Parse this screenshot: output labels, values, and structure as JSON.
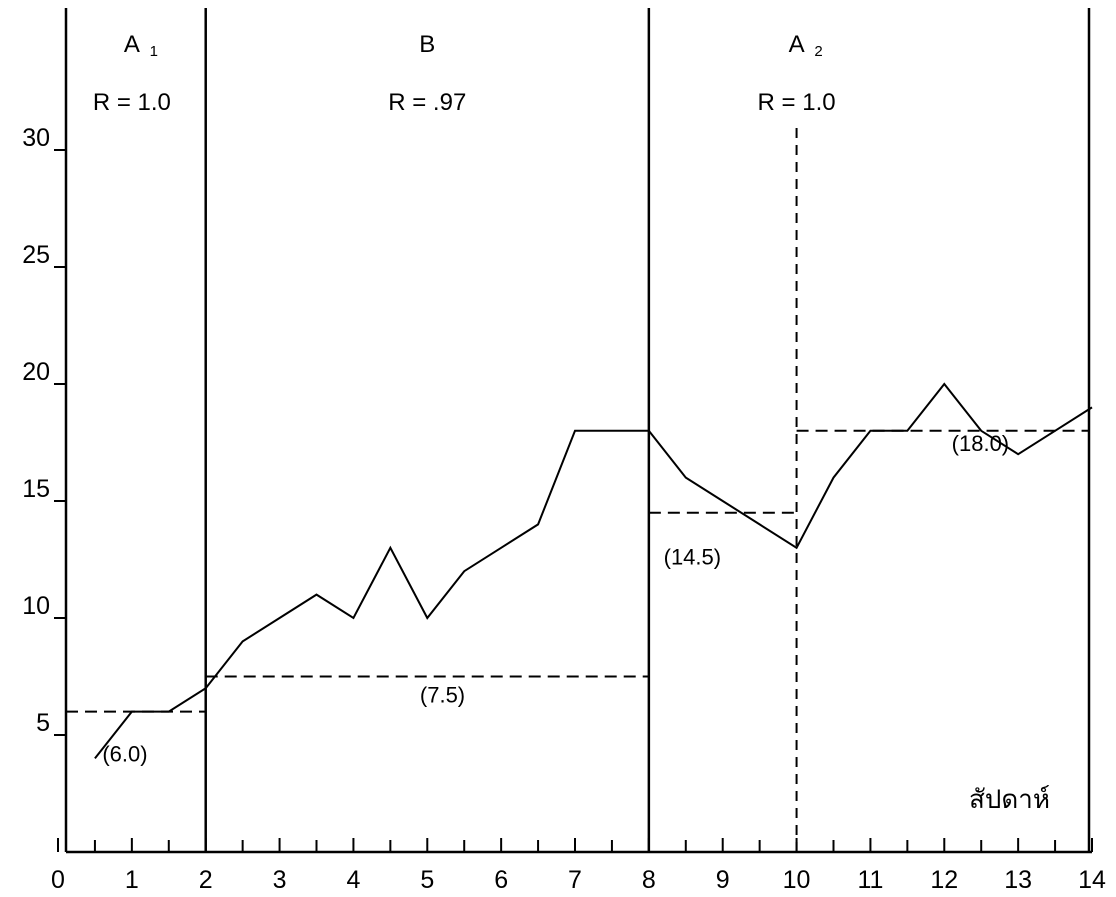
{
  "chart_data": {
    "type": "line",
    "xlabel": "สัปดาห์",
    "ylabel": "",
    "xlim": [
      0,
      14
    ],
    "ylim": [
      0,
      34
    ],
    "x_ticks": [
      "0",
      "1",
      "2",
      "3",
      "4",
      "5",
      "6",
      "7",
      "8",
      "9",
      "10",
      "11",
      "12",
      "13",
      "14"
    ],
    "y_ticks": [
      "5",
      "10",
      "15",
      "20",
      "25",
      "30"
    ],
    "grid": false,
    "phases": [
      {
        "label": "A",
        "subscript": "1",
        "r_text": "R =  1.0",
        "start": 0,
        "end": 2
      },
      {
        "label": "B",
        "subscript": "",
        "r_text": "R =  .97",
        "start": 2,
        "end": 8
      },
      {
        "label": "A",
        "subscript": "2",
        "r_text": "R =  1.0",
        "start": 8,
        "end": 14
      }
    ],
    "series": [
      {
        "x": [
          0.5,
          1,
          1.5,
          2,
          2.5,
          3,
          3.5,
          4,
          4.5,
          5,
          5.5,
          6,
          6.5,
          7,
          7.5,
          8,
          8.5,
          9,
          9.5,
          10,
          10.5,
          11,
          11.5,
          12,
          12.5,
          13,
          13.5,
          14
        ],
        "y": [
          4,
          6,
          6,
          7,
          9,
          10,
          11,
          10,
          13,
          10,
          12,
          13,
          14,
          18,
          18,
          18,
          16,
          15,
          14,
          13,
          16,
          18,
          18,
          20,
          18,
          17,
          18,
          19
        ]
      }
    ],
    "mean_lines": [
      {
        "value": 6.0,
        "x_start": 0,
        "x_end": 2,
        "label": "(6.0)"
      },
      {
        "value": 7.5,
        "x_start": 2,
        "x_end": 8,
        "label": "(7.5)"
      },
      {
        "value": 14.5,
        "x_start": 8,
        "x_end": 10,
        "label": "(14.5)"
      },
      {
        "value": 18.0,
        "x_start": 10,
        "x_end": 14,
        "label": "(18.0)"
      }
    ],
    "dashed_divider_x": 10
  }
}
